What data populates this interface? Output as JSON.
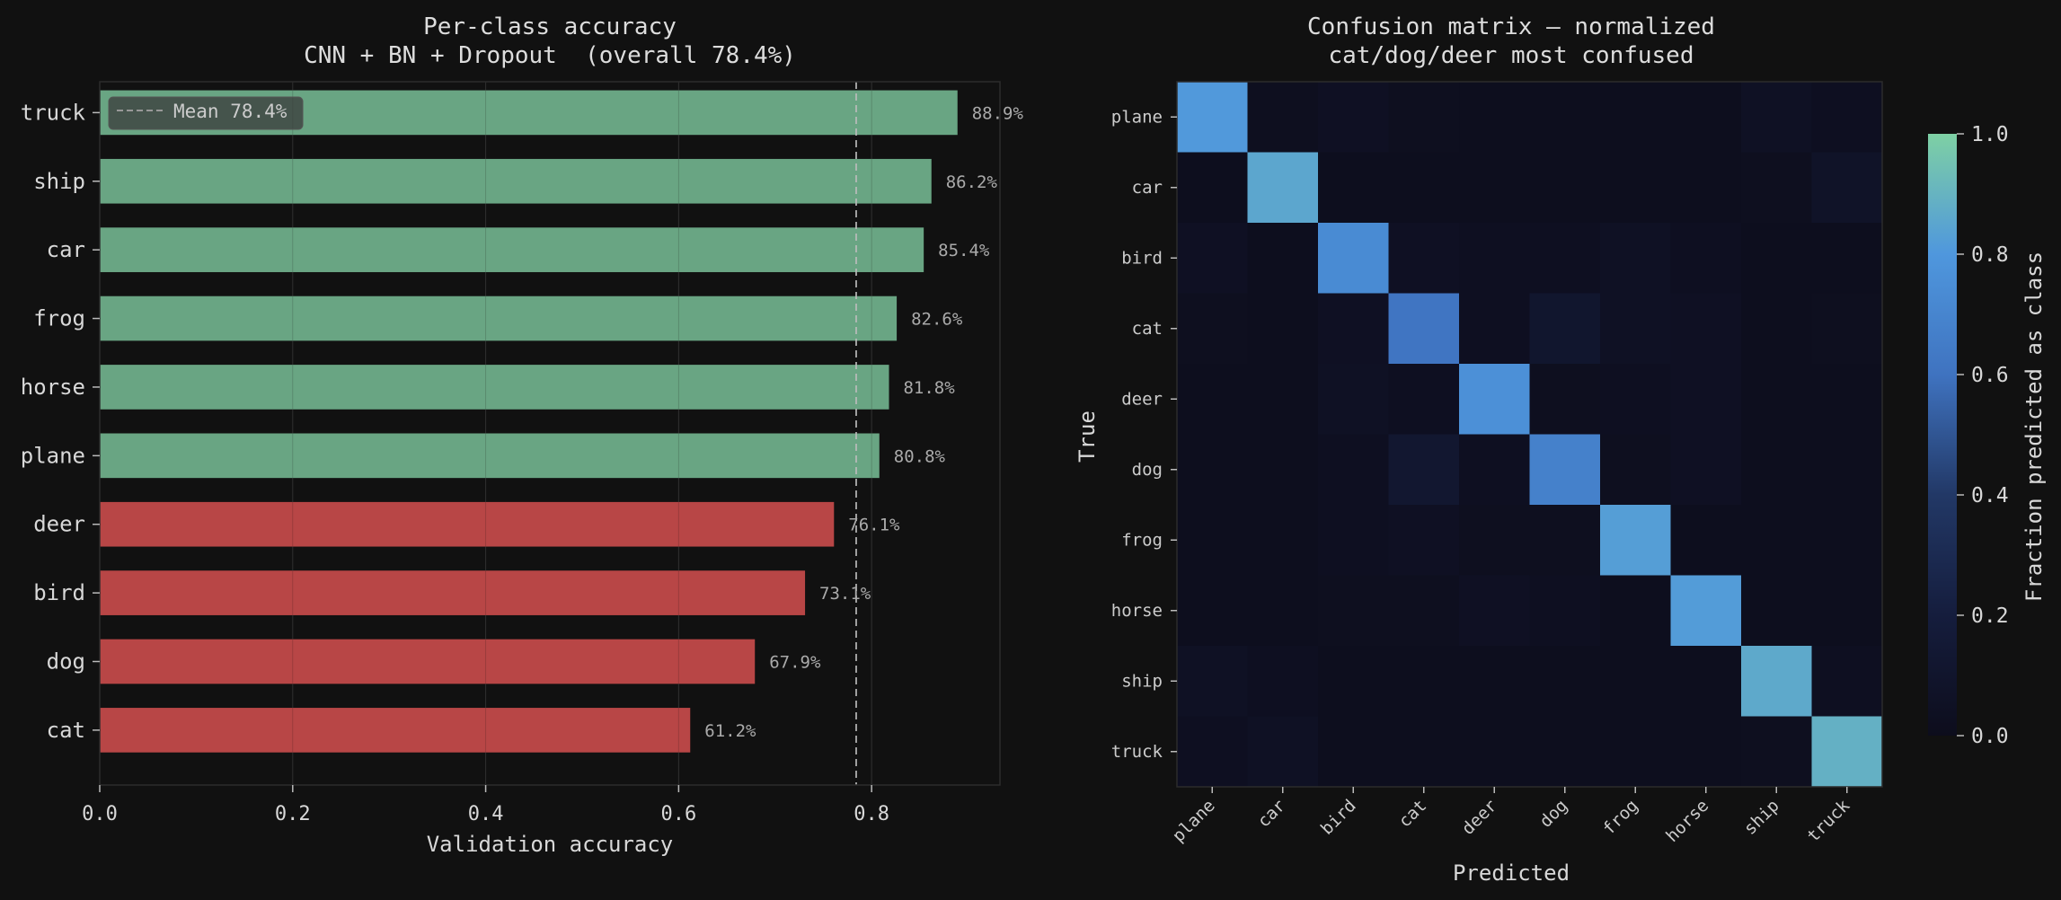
{
  "chart_data": [
    {
      "type": "bar",
      "orientation": "horizontal",
      "title": "Per-class accuracy",
      "subtitle": "CNN + BN + Dropout  (overall 78.4%)",
      "xlabel": "Validation accuracy",
      "ylabel": "",
      "xlim": [
        0,
        0.933
      ],
      "xticks": [
        0.0,
        0.2,
        0.4,
        0.6,
        0.8
      ],
      "xtick_labels": [
        "0.0",
        "0.2",
        "0.4",
        "0.6",
        "0.8"
      ],
      "grid": true,
      "categories": [
        "truck",
        "ship",
        "car",
        "frog",
        "horse",
        "plane",
        "deer",
        "bird",
        "dog",
        "cat"
      ],
      "values": [
        0.889,
        0.862,
        0.854,
        0.826,
        0.818,
        0.808,
        0.761,
        0.731,
        0.679,
        0.612
      ],
      "value_labels": [
        "88.9%",
        "86.2%",
        "85.4%",
        "82.6%",
        "81.8%",
        "80.8%",
        "76.1%",
        "73.1%",
        "67.9%",
        "61.2%"
      ],
      "colors": {
        "above_mean": "#6fae8a",
        "below_mean": "#c24a4a"
      },
      "reference_line": {
        "value": 0.784,
        "label": "Mean 78.4%",
        "style": "dashed",
        "color": "#bbbbbb"
      },
      "legend": {
        "placement": "top-left",
        "entries": [
          "Mean 78.4%"
        ]
      }
    },
    {
      "type": "heatmap",
      "title": "Confusion matrix — normalized",
      "subtitle": "cat/dog/deer most confused",
      "xlabel": "Predicted",
      "ylabel": "True",
      "x_categories": [
        "plane",
        "car",
        "bird",
        "cat",
        "deer",
        "dog",
        "frog",
        "horse",
        "ship",
        "truck"
      ],
      "y_categories": [
        "plane",
        "car",
        "bird",
        "cat",
        "deer",
        "dog",
        "frog",
        "horse",
        "ship",
        "truck"
      ],
      "matrix": [
        [
          0.808,
          0.02,
          0.04,
          0.02,
          0.01,
          0.01,
          0.01,
          0.01,
          0.05,
          0.03
        ],
        [
          0.01,
          0.854,
          0.01,
          0.01,
          0.01,
          0.01,
          0.01,
          0.01,
          0.02,
          0.07
        ],
        [
          0.04,
          0.01,
          0.731,
          0.04,
          0.03,
          0.03,
          0.05,
          0.03,
          0.01,
          0.01
        ],
        [
          0.02,
          0.01,
          0.04,
          0.612,
          0.03,
          0.11,
          0.05,
          0.04,
          0.01,
          0.02
        ],
        [
          0.01,
          0.01,
          0.05,
          0.03,
          0.761,
          0.02,
          0.03,
          0.04,
          0.01,
          0.01
        ],
        [
          0.01,
          0.01,
          0.03,
          0.12,
          0.03,
          0.679,
          0.02,
          0.04,
          0.01,
          0.01
        ],
        [
          0.01,
          0.01,
          0.03,
          0.04,
          0.02,
          0.02,
          0.826,
          0.01,
          0.01,
          0.01
        ],
        [
          0.01,
          0.01,
          0.02,
          0.02,
          0.04,
          0.03,
          0.01,
          0.818,
          0.01,
          0.01
        ],
        [
          0.05,
          0.03,
          0.01,
          0.01,
          0.01,
          0.01,
          0.01,
          0.01,
          0.862,
          0.03
        ],
        [
          0.03,
          0.05,
          0.01,
          0.01,
          0.01,
          0.01,
          0.01,
          0.01,
          0.02,
          0.889
        ]
      ],
      "colorbar": {
        "label": "Fraction predicted as class",
        "range": [
          0,
          1
        ],
        "ticks": [
          0.0,
          0.2,
          0.4,
          0.6,
          0.8,
          1.0
        ],
        "tick_labels": [
          "0.0",
          "0.2",
          "0.4",
          "0.6",
          "0.8",
          "1.0"
        ],
        "stops": [
          {
            "v": 0.0,
            "color": "#0d0d1c"
          },
          {
            "v": 0.2,
            "color": "#151d3d"
          },
          {
            "v": 0.4,
            "color": "#223866"
          },
          {
            "v": 0.6,
            "color": "#3f73c0"
          },
          {
            "v": 0.8,
            "color": "#4f97dd"
          },
          {
            "v": 1.0,
            "color": "#7ed0a4"
          }
        ]
      }
    }
  ]
}
